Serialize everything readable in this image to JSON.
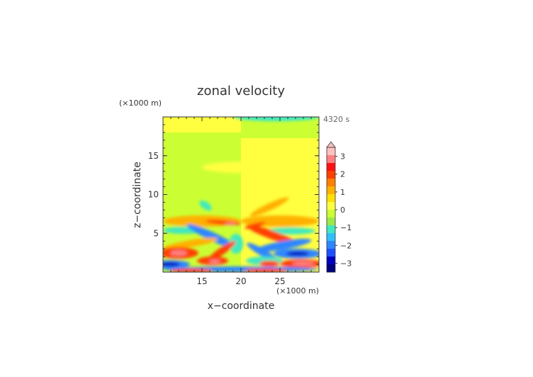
{
  "chart_data": {
    "type": "heatmap",
    "title": "zonal velocity",
    "xlabel": "x−coordinate",
    "ylabel": "z−coordinate",
    "x_unit": "(×1000 m)",
    "z_unit": "(×1000 m)",
    "time_label": "4320 s",
    "xlim": [
      10,
      30
    ],
    "ylim": [
      0,
      20
    ],
    "x_ticks": [
      "15",
      "20",
      "25"
    ],
    "y_ticks": [
      "5",
      "10",
      "15"
    ],
    "colorbar": {
      "ticks": [
        "3",
        "2",
        "1",
        "0",
        "−1",
        "−2",
        "−3"
      ],
      "range": [
        -3.5,
        3.5
      ],
      "extend_top": true,
      "colors": {
        "n3.5": "#000080",
        "n3": "#0000c0",
        "n2.5": "#1e50ff",
        "n2": "#2e86ff",
        "n1.5": "#30c0ff",
        "n1": "#40e8c0",
        "n0.5": "#9be84a",
        "z0": "#ccff33",
        "p0": "#ffff40",
        "p0.5": "#ffe000",
        "p1": "#ffb000",
        "p1.5": "#ff8000",
        "p2": "#ff4000",
        "p2.5": "#ff1010",
        "p3": "#ff8080",
        "p3.5": "#ffc0c0"
      }
    },
    "field_features": [
      {
        "x": 15,
        "z": 18.8,
        "value": 0.2
      },
      {
        "x": 28,
        "z": 19.6,
        "value": -0.7
      },
      {
        "x": 20,
        "z": 13.2,
        "value": 0.3
      },
      {
        "x": 15,
        "z": 8.9,
        "value": -0.8
      },
      {
        "x": 25,
        "z": 8.7,
        "value": 0.8
      },
      {
        "x": 17.8,
        "z": 6.2,
        "value": 3.0
      },
      {
        "x": 24.3,
        "z": 5.1,
        "value": 2.2
      },
      {
        "x": 15.8,
        "z": 4.0,
        "value": -1.8
      },
      {
        "x": 12.2,
        "z": 2.4,
        "value": 3.0
      },
      {
        "x": 28.0,
        "z": 2.2,
        "value": -2.6
      },
      {
        "x": 28.3,
        "z": 1.1,
        "value": 3.0
      },
      {
        "x": 11.2,
        "z": 1.1,
        "value": -2.8
      },
      {
        "x": 16.8,
        "z": 1.4,
        "value": 2.5
      },
      {
        "x": 23.0,
        "z": 0.8,
        "value": 2.5
      }
    ]
  }
}
